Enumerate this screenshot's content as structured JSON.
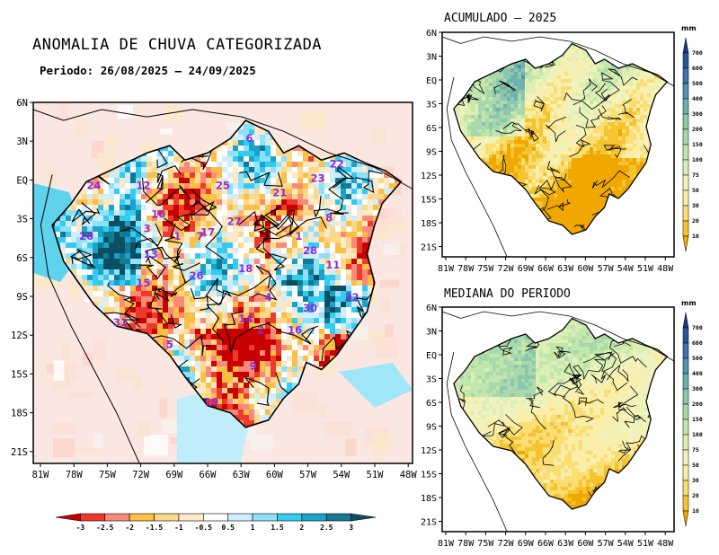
{
  "main_map": {
    "title": "ANOMALIA DE CHUVA CATEGORIZADA",
    "period": "Periodo: 26/08/2025 – 24/09/2025",
    "lat_labels": [
      "6N",
      "3N",
      "EQ",
      "3S",
      "6S",
      "9S",
      "12S",
      "15S",
      "18S",
      "21S"
    ],
    "lon_labels": [
      "81W",
      "78W",
      "75W",
      "72W",
      "69W",
      "66W",
      "63W",
      "60W",
      "57W",
      "54W",
      "51W",
      "48W"
    ],
    "basin_numbers": [
      "6",
      "22",
      "23",
      "24",
      "12",
      "25",
      "21",
      "10",
      "27",
      "8",
      "20",
      "3",
      "1",
      "17",
      "7",
      "1",
      "28",
      "13",
      "11",
      "15",
      "26",
      "18",
      "4",
      "32",
      "30",
      "31",
      "14",
      "16",
      "5",
      "9",
      "19",
      "2"
    ],
    "colorbar": {
      "labels": [
        "-3",
        "-2.5",
        "-2",
        "-1.5",
        "-1",
        "-0.5",
        "0.5",
        "1",
        "1.5",
        "2",
        "2.5",
        "3"
      ],
      "colors": [
        "#c80000",
        "#ee3a2a",
        "#f98a7a",
        "#fbbf44",
        "#fcd98a",
        "#fde9c8",
        "#ffffff",
        "#cfeefa",
        "#8fe0f8",
        "#33ccf0",
        "#1aa3c8",
        "#137a94",
        "#0b4f63"
      ]
    }
  },
  "accumulated_map": {
    "title": "ACUMULADO – 2025",
    "lat_labels": [
      "6N",
      "3N",
      "EQ",
      "3S",
      "6S",
      "9S",
      "12S",
      "15S",
      "18S",
      "21S"
    ],
    "lon_labels": [
      "81W",
      "78W",
      "75W",
      "72W",
      "69W",
      "66W",
      "63W",
      "60W",
      "57W",
      "54W",
      "51W",
      "48W"
    ]
  },
  "median_map": {
    "title": "MEDIANA DO PERIODO",
    "lat_labels": [
      "6N",
      "3N",
      "EQ",
      "3S",
      "6S",
      "9S",
      "12S",
      "15S",
      "18S",
      "21S"
    ],
    "lon_labels": [
      "81W",
      "78W",
      "75W",
      "72W",
      "69W",
      "66W",
      "63W",
      "60W",
      "57W",
      "54W",
      "51W",
      "48W"
    ]
  },
  "vertical_colorbar": {
    "units": "mm",
    "labels": [
      "10",
      "20",
      "30",
      "50",
      "75",
      "100",
      "150",
      "200",
      "300",
      "400",
      "500",
      "600",
      "700"
    ],
    "colors": [
      "#f0a800",
      "#f5c431",
      "#f8de73",
      "#fbeea8",
      "#f0f3bd",
      "#dcefb4",
      "#c3e6ad",
      "#a7d9ad",
      "#8cc7ad",
      "#6fb1ad",
      "#5592b1",
      "#3e73ad",
      "#2a5499",
      "#1b3a83"
    ]
  }
}
